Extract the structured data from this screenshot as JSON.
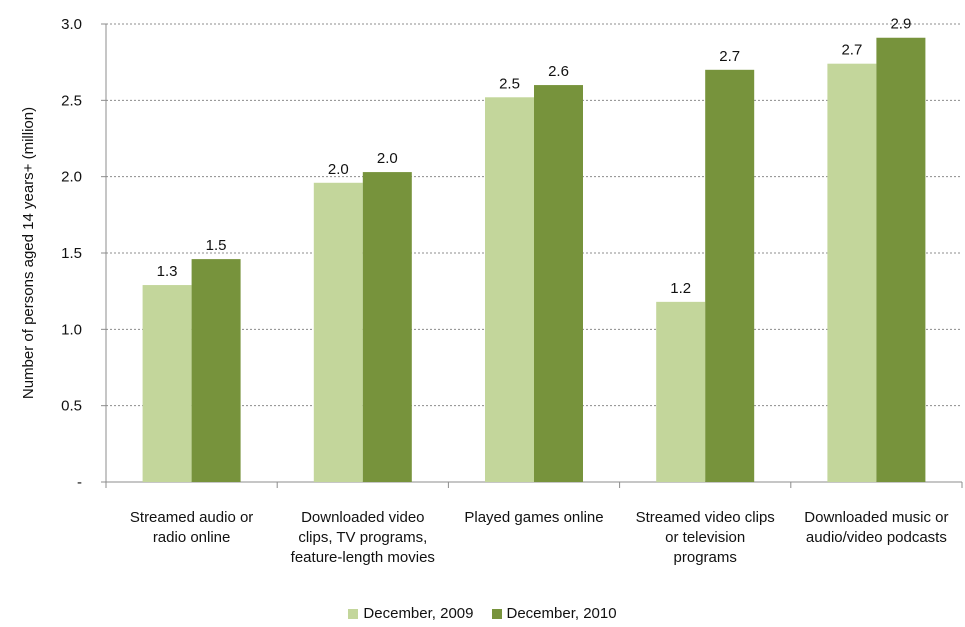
{
  "chart_data": {
    "type": "bar",
    "categories": [
      [
        "Streamed audio or",
        "radio online"
      ],
      [
        "Downloaded video",
        "clips, TV programs,",
        "feature-length movies"
      ],
      [
        "Played games online"
      ],
      [
        "Streamed video  clips",
        "or television",
        "programs"
      ],
      [
        "Downloaded music or",
        "audio/video podcasts"
      ]
    ],
    "series": [
      {
        "name": "December, 2009",
        "color": "#c3d69b",
        "values": [
          1.29,
          1.96,
          2.52,
          1.18,
          2.74
        ],
        "labels": [
          "1.3",
          "2.0",
          "2.5",
          "1.2",
          "2.7"
        ]
      },
      {
        "name": "December, 2010",
        "color": "#77933c",
        "values": [
          1.46,
          2.03,
          2.6,
          2.7,
          2.91
        ],
        "labels": [
          "1.5",
          "2.0",
          "2.6",
          "2.7",
          "2.9"
        ]
      }
    ],
    "ylabel": "Number of persons aged 14 years+ (million)",
    "ylim": [
      0,
      3.0
    ],
    "yticks": [
      "-",
      "0.5",
      "1.0",
      "1.5",
      "2.0",
      "2.5",
      "3.0"
    ],
    "grid": true,
    "legend_position": "bottom"
  }
}
